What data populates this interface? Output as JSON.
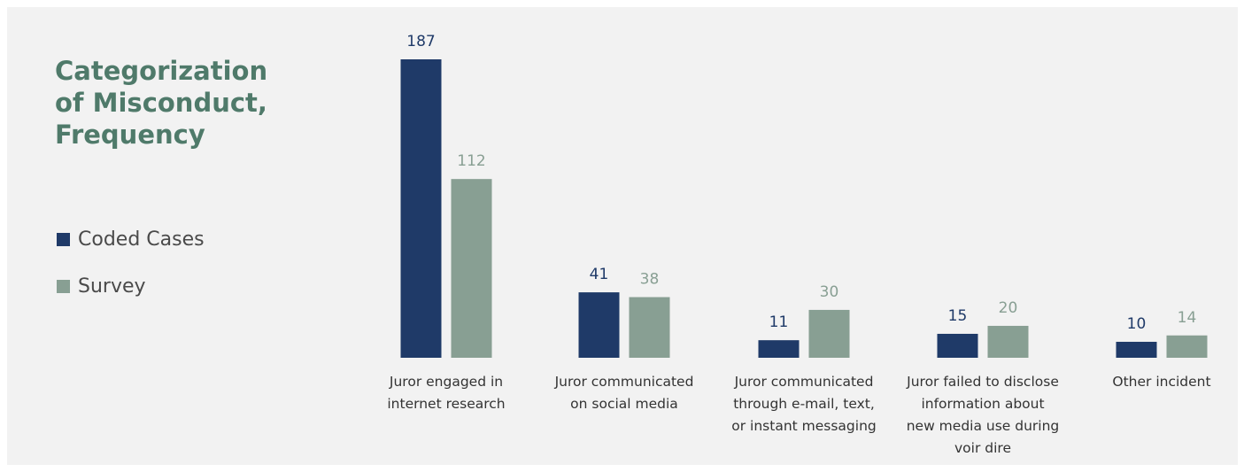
{
  "chart_data": {
    "type": "bar",
    "title": [
      "Categorization",
      "of Misconduct,",
      "Frequency"
    ],
    "categories": [
      [
        "Juror engaged in",
        "internet research"
      ],
      [
        "Juror communicated",
        "on social media"
      ],
      [
        "Juror communicated",
        "through e-mail, text,",
        "or instant messaging"
      ],
      [
        "Juror failed to disclose",
        "information about",
        "new media use during",
        "voir dire"
      ],
      [
        "Other incident"
      ]
    ],
    "series": [
      {
        "name": "Coded Cases",
        "color": "#1f3a68",
        "values": [
          187,
          41,
          11,
          15,
          10
        ]
      },
      {
        "name": "Survey",
        "color": "#889f93",
        "values": [
          112,
          38,
          30,
          20,
          14
        ]
      }
    ],
    "ylim": [
      0,
      187
    ],
    "grid": false,
    "legend": "left",
    "label_colors": {
      "Coded Cases": "#1f3a68",
      "Survey": "#889f93"
    }
  }
}
